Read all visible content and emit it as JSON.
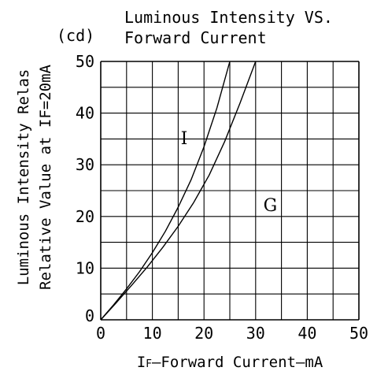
{
  "chart_data": {
    "type": "line",
    "title_line1": "Luminous Intensity VS.",
    "title_line2": "Forward Current",
    "unit": "(cd)",
    "ylabel_line1": "Luminous Intensity Relas",
    "ylabel_line2": "Relative Value at IF=20mA",
    "xlabel_prefix": "I",
    "xlabel_sub": "F",
    "xlabel_rest": "—Forward Current—mA",
    "xlim": [
      0,
      50
    ],
    "ylim": [
      0,
      50
    ],
    "x_ticks": [
      0,
      10,
      20,
      30,
      40,
      50
    ],
    "y_ticks": [
      0,
      10,
      20,
      30,
      40,
      50
    ],
    "grid": true,
    "grid_x_step": 5,
    "grid_y_step": 5,
    "series": [
      {
        "name": "I",
        "label_at": [
          15.5,
          34
        ],
        "x": [
          0,
          2.5,
          5,
          7.5,
          10,
          12.5,
          15,
          17.5,
          20,
          22.5,
          25
        ],
        "y": [
          0,
          2.9,
          6.0,
          9.3,
          13.0,
          17.1,
          21.8,
          27.1,
          33.5,
          41.0,
          50
        ]
      },
      {
        "name": "G",
        "label_at": [
          31.5,
          21
        ],
        "x": [
          0,
          3,
          6,
          9,
          12,
          15,
          18,
          21,
          24,
          27,
          30
        ],
        "y": [
          0,
          3.3,
          6.7,
          10.2,
          14.0,
          18.1,
          22.7,
          28.0,
          34.5,
          42.0,
          50
        ]
      }
    ]
  }
}
